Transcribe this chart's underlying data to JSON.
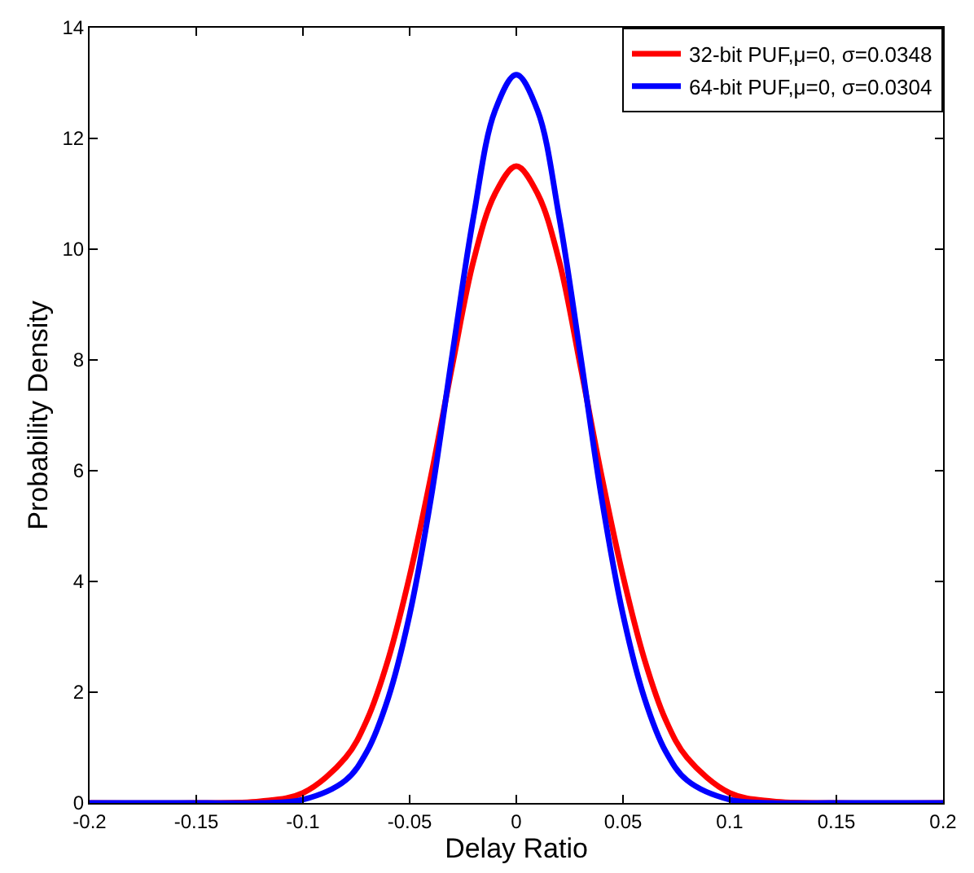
{
  "chart_data": {
    "type": "line",
    "xlabel": "Delay Ratio",
    "ylabel": "Probability Density",
    "x": [
      -0.2,
      -0.15,
      -0.12,
      -0.1,
      -0.08,
      -0.07,
      -0.06,
      -0.05,
      -0.04,
      -0.03,
      -0.02,
      -0.01,
      0,
      0.01,
      0.02,
      0.03,
      0.04,
      0.05,
      0.06,
      0.07,
      0.08,
      0.1,
      0.12,
      0.15,
      0.2
    ],
    "series": [
      {
        "name": "32-bit PUF,μ=0, σ=0.0348",
        "color": "#ff0000",
        "values": [
          0,
          0,
          0.03,
          0.18,
          0.82,
          1.5,
          2.6,
          4.1,
          5.9,
          7.9,
          9.8,
          11,
          11.5,
          11,
          9.8,
          7.9,
          5.9,
          4.1,
          2.6,
          1.5,
          0.82,
          0.18,
          0.03,
          0,
          0
        ]
      },
      {
        "name": "64-bit PUF,μ=0, σ=0.0304",
        "color": "#0000ff",
        "values": [
          0,
          0,
          0,
          0.06,
          0.41,
          0.93,
          1.9,
          3.4,
          5.5,
          8.1,
          10.6,
          12.5,
          13.15,
          12.5,
          10.6,
          8.1,
          5.5,
          3.4,
          1.9,
          0.93,
          0.41,
          0.06,
          0,
          0,
          0
        ]
      }
    ],
    "xlim": [
      -0.2,
      0.2
    ],
    "xticks": [
      -0.2,
      -0.15,
      -0.1,
      -0.05,
      0,
      0.05,
      0.1,
      0.15,
      0.2
    ],
    "ylim": [
      0,
      14
    ],
    "yticks": [
      0,
      2,
      4,
      6,
      8,
      10,
      12,
      14
    ],
    "legend": "top right",
    "marker": "none",
    "line_style": "solid"
  }
}
